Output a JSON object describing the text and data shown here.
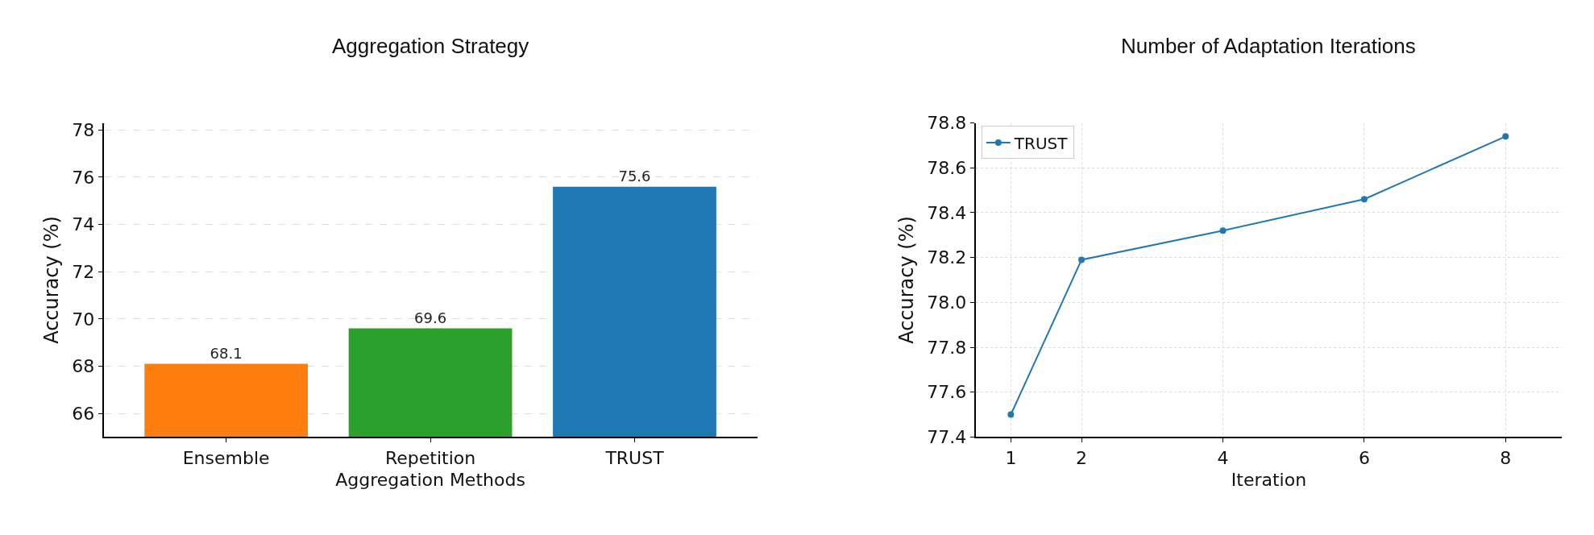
{
  "chart_data": [
    {
      "type": "bar",
      "title": "Aggregation Strategy",
      "xlabel": "Aggregation Methods",
      "ylabel": "Accuracy (%)",
      "categories": [
        "Ensemble",
        "Repetition",
        "TRUST"
      ],
      "values": [
        68.1,
        69.6,
        75.6
      ],
      "colors": [
        "#ff7f0e",
        "#2ca02c",
        "#1f77b4"
      ],
      "ylim": [
        65,
        78.3
      ],
      "yticks": [
        66,
        68,
        70,
        72,
        74,
        76,
        78
      ],
      "data_labels": true,
      "grid": "y"
    },
    {
      "type": "line",
      "title": "Number of Adaptation Iterations",
      "xlabel": "Iteration",
      "ylabel": "Accuracy (%)",
      "x": [
        1,
        2,
        4,
        6,
        8
      ],
      "series": [
        {
          "name": "TRUST",
          "color": "#1f77b4",
          "values": [
            77.5,
            78.19,
            78.32,
            78.46,
            78.74
          ]
        }
      ],
      "xlim": [
        0.5,
        8.8
      ],
      "xticks": [
        1,
        2,
        4,
        6,
        8
      ],
      "ylim": [
        77.4,
        78.8
      ],
      "yticks": [
        {
          "value": 77.4,
          "label": "77.4"
        },
        {
          "value": 77.6,
          "label": "77.6"
        },
        {
          "value": 77.8,
          "label": "77.8"
        },
        {
          "value": 78.0,
          "label": "78.0"
        },
        {
          "value": 78.2,
          "label": "78.2"
        },
        {
          "value": 78.4,
          "label": "78.4"
        },
        {
          "value": 78.6,
          "label": "78.6"
        },
        {
          "value": 78.8,
          "label": "78.8"
        }
      ],
      "grid": true,
      "legend": "top left",
      "marker": "circle",
      "line_style": "solid"
    }
  ]
}
